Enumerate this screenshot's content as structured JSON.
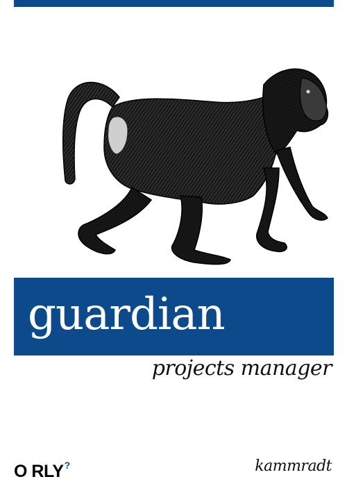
{
  "cover": {
    "title": "guardian",
    "subtitle": "projects manager",
    "publisher": "O RLY",
    "publisher_mark": "?",
    "author": "kammradt",
    "illustration_icon": "baboon-engraving-icon",
    "colors": {
      "accent": "#0c4a8c",
      "background": "#ffffff",
      "title_text": "#ffffff",
      "body_text": "#111111"
    }
  }
}
